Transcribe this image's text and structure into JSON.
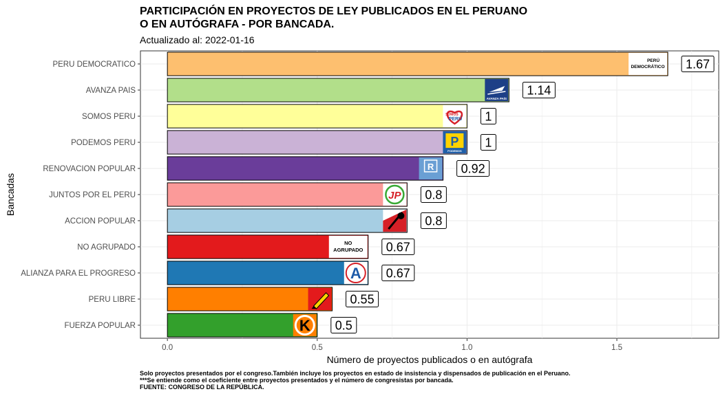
{
  "header": {
    "title": "PARTICIPACIÓN EN PROYECTOS DE LEY PUBLICADOS EN EL PERUANO\nO EN AUTÓGRAFA - POR BANCADA.",
    "subtitle": "Actualizado al: 2022-01-16"
  },
  "caption": {
    "lines": [
      "Solo proyectos presentados por el congreso.También incluye los proyectos en estado de insistencia y dispensados de publicación en el Peruano.",
      "***Se entiende como el coeficiente entre proyectos presentados y el número de congresistas por bancada.",
      "FUENTE: CONGRESO DE LA REPÚBLICA."
    ]
  },
  "chart_data": {
    "type": "bar",
    "orientation": "horizontal",
    "xlabel": "Número de proyectos publicados o en autógrafa",
    "ylabel": "Bancadas",
    "xlim": [
      -0.09,
      1.84
    ],
    "xticks": [
      "0.0",
      "0.5",
      "1.0",
      "1.5"
    ],
    "grid": true,
    "categories": [
      "PERU DEMOCRATICO",
      "AVANZA PAIS",
      "SOMOS PERU",
      "PODEMOS PERU",
      "RENOVACION POPULAR",
      "JUNTOS POR EL PERU",
      "ACCION POPULAR",
      "NO AGRUPADO",
      "ALIANZA PARA EL PROGRESO",
      "PERU LIBRE",
      "FUERZA POPULAR"
    ],
    "values": [
      1.67,
      1.14,
      1,
      1,
      0.92,
      0.8,
      0.8,
      0.67,
      0.67,
      0.55,
      0.5
    ],
    "value_labels": [
      "1.67",
      "1.14",
      "1",
      "1",
      "0.92",
      "0.8",
      "0.8",
      "0.67",
      "0.67",
      "0.55",
      "0.5"
    ],
    "colors": [
      "#FDBF6F",
      "#B2DF8A",
      "#FFFF99",
      "#CAB2D6",
      "#6A3D9A",
      "#FB9A99",
      "#A6CEE3",
      "#E31A1C",
      "#1F78B4",
      "#FF7F00",
      "#33A02C"
    ],
    "logos": [
      {
        "icon": "peru-democratico-logo",
        "text": [
          "PERÚ",
          "DEMOCRÁTICO"
        ]
      },
      {
        "icon": "avanza-pais-logo",
        "text": [
          "AVANZA PAÍS"
        ]
      },
      {
        "icon": "somos-peru-logo",
        "text": [
          "SOMOS",
          "PERÚ"
        ]
      },
      {
        "icon": "podemos-peru-logo",
        "text": [
          "P",
          "PODEMOS"
        ]
      },
      {
        "icon": "renovacion-popular-logo",
        "text": [
          "R"
        ]
      },
      {
        "icon": "juntos-por-el-peru-logo",
        "text": [
          "JP"
        ]
      },
      {
        "icon": "accion-popular-logo",
        "text": []
      },
      {
        "icon": "no-agrupado-logo",
        "text": [
          "NO",
          "AGRUPADO"
        ]
      },
      {
        "icon": "alianza-para-el-progreso-logo",
        "text": [
          "A"
        ]
      },
      {
        "icon": "peru-libre-logo",
        "text": []
      },
      {
        "icon": "fuerza-popular-logo",
        "text": [
          "K"
        ]
      }
    ]
  }
}
